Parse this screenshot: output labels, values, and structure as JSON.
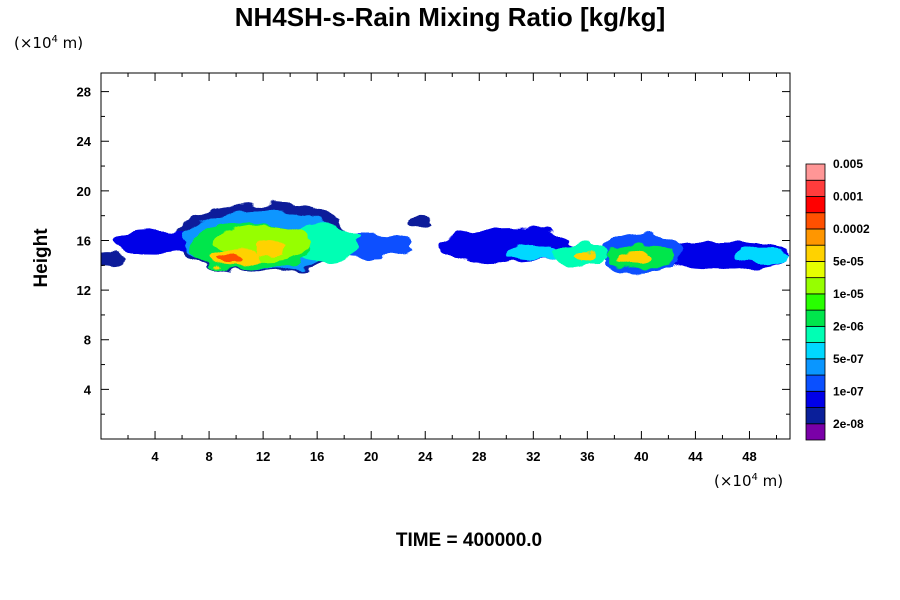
{
  "title": "NH4SH-s-Rain Mixing Ratio [kg/kg]",
  "y_unit_prefix": "(×10",
  "y_unit_exp": "4",
  "y_unit_suffix": " m)",
  "x_unit_prefix": "(×10",
  "x_unit_exp": "4",
  "x_unit_suffix": " m)",
  "ylabel": "Height",
  "time_label": "TIME = 400000.0",
  "chart_data": {
    "type": "heatmap",
    "title": "NH4SH-s-Rain Mixing Ratio [kg/kg]",
    "ylabel": "Height",
    "xlabel": "",
    "xlim": [
      0,
      51
    ],
    "ylim": [
      0,
      29.5
    ],
    "x_ticks": [
      "4",
      "8",
      "12",
      "16",
      "20",
      "24",
      "28",
      "32",
      "36",
      "40",
      "44",
      "48"
    ],
    "x_tick_values": [
      4,
      8,
      12,
      16,
      20,
      24,
      28,
      32,
      36,
      40,
      44,
      48
    ],
    "y_ticks": [
      "4",
      "8",
      "12",
      "16",
      "20",
      "24",
      "28"
    ],
    "y_tick_values": [
      4,
      8,
      12,
      16,
      20,
      24,
      28
    ],
    "grid": false,
    "colorbar": {
      "colors": [
        "#7a00a8",
        "#0a1f9a",
        "#0000e8",
        "#0a50ff",
        "#0a96ff",
        "#00d8ff",
        "#00ffb4",
        "#00e64c",
        "#28ff00",
        "#96ff00",
        "#e6ff00",
        "#ffd200",
        "#ff9600",
        "#ff5000",
        "#ff0000",
        "#ff3c3c",
        "#ff9696"
      ],
      "labels": [
        "2e-08",
        "1e-07",
        "5e-07",
        "2e-06",
        "1e-05",
        "5e-05",
        "0.0002",
        "0.001",
        "0.005"
      ]
    },
    "field": [
      {
        "x": 0.3,
        "y": 14.5,
        "rx": 1.5,
        "ry": 0.6,
        "level": 1
      },
      {
        "x": 4,
        "y": 15.9,
        "rx": 3,
        "ry": 1.0,
        "level": 2
      },
      {
        "x": 12,
        "y": 16.2,
        "rx": 6.5,
        "ry": 2.8,
        "level": 1
      },
      {
        "x": 12,
        "y": 16.0,
        "rx": 6,
        "ry": 2.4,
        "level": 4
      },
      {
        "x": 11,
        "y": 15.5,
        "rx": 4.5,
        "ry": 1.9,
        "level": 7
      },
      {
        "x": 12,
        "y": 15.8,
        "rx": 3.5,
        "ry": 1.4,
        "level": 9
      },
      {
        "x": 10,
        "y": 14.6,
        "rx": 2.0,
        "ry": 0.7,
        "level": 11
      },
      {
        "x": 9.6,
        "y": 14.5,
        "rx": 1.0,
        "ry": 0.4,
        "level": 13
      },
      {
        "x": 12.5,
        "y": 15.4,
        "rx": 1.2,
        "ry": 0.6,
        "level": 11
      },
      {
        "x": 16.5,
        "y": 15.8,
        "rx": 2.5,
        "ry": 1.6,
        "level": 6
      },
      {
        "x": 20,
        "y": 15.6,
        "rx": 3,
        "ry": 0.9,
        "level": 3
      },
      {
        "x": 23.5,
        "y": 17.5,
        "rx": 1.0,
        "ry": 0.4,
        "level": 1
      },
      {
        "x": 30,
        "y": 15.6,
        "rx": 5,
        "ry": 1.4,
        "level": 2
      },
      {
        "x": 32,
        "y": 15.0,
        "rx": 2,
        "ry": 0.6,
        "level": 5
      },
      {
        "x": 35.5,
        "y": 14.8,
        "rx": 2,
        "ry": 0.9,
        "level": 6
      },
      {
        "x": 35.8,
        "y": 14.7,
        "rx": 0.8,
        "ry": 0.4,
        "level": 11
      },
      {
        "x": 40,
        "y": 15.0,
        "rx": 3,
        "ry": 1.6,
        "level": 3
      },
      {
        "x": 40,
        "y": 14.7,
        "rx": 2.5,
        "ry": 1.0,
        "level": 7
      },
      {
        "x": 39.5,
        "y": 14.6,
        "rx": 1.2,
        "ry": 0.5,
        "level": 11
      },
      {
        "x": 46,
        "y": 14.8,
        "rx": 5,
        "ry": 1.2,
        "level": 2
      },
      {
        "x": 49,
        "y": 14.7,
        "rx": 2,
        "ry": 0.6,
        "level": 5
      }
    ]
  }
}
